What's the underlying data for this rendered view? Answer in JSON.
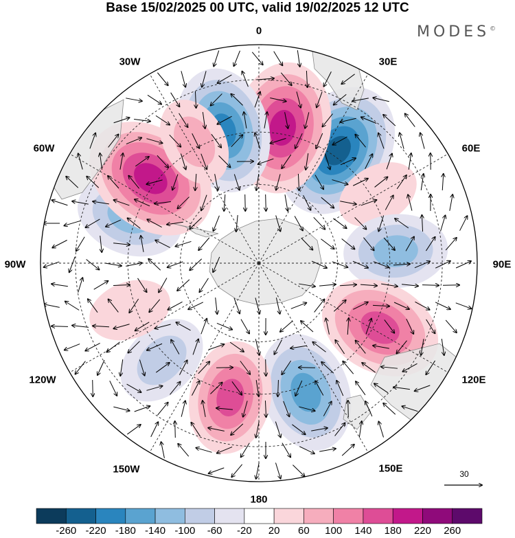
{
  "header": {
    "title": "Base 15/02/2025 00 UTC, valid 19/02/2025 12 UTC",
    "brand": "MODES",
    "brand_mark": "©"
  },
  "map": {
    "projection": "south-polar-stereographic",
    "lon_labels": [
      {
        "id": "0",
        "text": "0"
      },
      {
        "id": "30e",
        "text": "30E"
      },
      {
        "id": "60e",
        "text": "60E"
      },
      {
        "id": "90e",
        "text": "90E"
      },
      {
        "id": "120e",
        "text": "120E"
      },
      {
        "id": "150e",
        "text": "150E"
      },
      {
        "id": "180",
        "text": "180"
      },
      {
        "id": "150w",
        "text": "150W"
      },
      {
        "id": "120w",
        "text": "120W"
      },
      {
        "id": "90w",
        "text": "90W"
      },
      {
        "id": "60w",
        "text": "60W"
      },
      {
        "id": "30w",
        "text": "30W"
      }
    ],
    "anomalies": [
      {
        "lon": 35,
        "value": -220
      },
      {
        "lon": 10,
        "value": 200
      },
      {
        "lon": -15,
        "value": -180
      },
      {
        "lon": 60,
        "value": 40
      },
      {
        "lon": 85,
        "value": -110
      },
      {
        "lon": 118,
        "value": 170
      },
      {
        "lon": 160,
        "value": -160
      },
      {
        "lon": -168,
        "value": 140
      },
      {
        "lon": -135,
        "value": -80
      },
      {
        "lon": -110,
        "value": 40
      },
      {
        "lon": -70,
        "value": -120
      },
      {
        "lon": -52,
        "value": 210
      },
      {
        "lon": -28,
        "value": 60
      }
    ],
    "vector_reference": "30",
    "colors": {
      "land": "#e6e6e6",
      "coast": "#888888"
    }
  },
  "colorbar": {
    "labels": [
      "-260",
      "-220",
      "-180",
      "-140",
      "-100",
      "-60",
      "-20",
      "20",
      "60",
      "100",
      "140",
      "180",
      "220",
      "260"
    ],
    "colors": [
      "#0c3b5b",
      "#14608f",
      "#2a85be",
      "#5aa3d0",
      "#8fbde0",
      "#c1cde6",
      "#e4e3f0",
      "#ffffff",
      "#fad6db",
      "#f6adbd",
      "#f081a6",
      "#de4d96",
      "#c2188a",
      "#8f0a7a",
      "#5d0a6b"
    ]
  }
}
